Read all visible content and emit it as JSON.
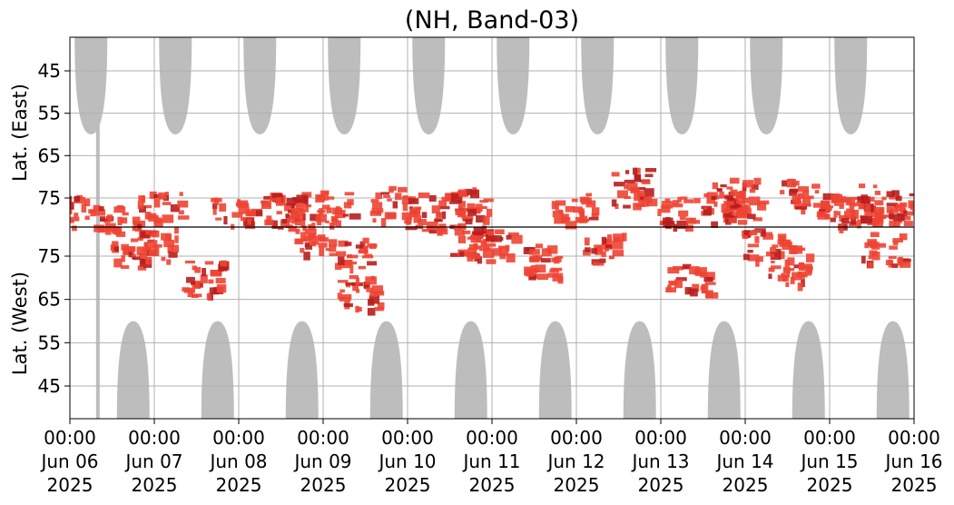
{
  "chart_data": {
    "type": "heatmap",
    "title": "(NH, Band-03)",
    "ylabel_top": "Lat. (East)",
    "ylabel_bottom": "Lat. (West)",
    "x_range_days": [
      0,
      10
    ],
    "x_ticks": [
      {
        "day": 0,
        "time": "00:00",
        "date": "Jun 06",
        "year": "2025"
      },
      {
        "day": 1,
        "time": "00:00",
        "date": "Jun 07",
        "year": "2025"
      },
      {
        "day": 2,
        "time": "00:00",
        "date": "Jun 08",
        "year": "2025"
      },
      {
        "day": 3,
        "time": "00:00",
        "date": "Jun 09",
        "year": "2025"
      },
      {
        "day": 4,
        "time": "00:00",
        "date": "Jun 10",
        "year": "2025"
      },
      {
        "day": 5,
        "time": "00:00",
        "date": "Jun 11",
        "year": "2025"
      },
      {
        "day": 6,
        "time": "00:00",
        "date": "Jun 12",
        "year": "2025"
      },
      {
        "day": 7,
        "time": "00:00",
        "date": "Jun 13",
        "year": "2025"
      },
      {
        "day": 8,
        "time": "00:00",
        "date": "Jun 14",
        "year": "2025"
      },
      {
        "day": 9,
        "time": "00:00",
        "date": "Jun 15",
        "year": "2025"
      },
      {
        "day": 10,
        "time": "00:00",
        "date": "Jun 16",
        "year": "2025"
      }
    ],
    "y_ticks_east": [
      "45",
      "55",
      "65",
      "75"
    ],
    "y_ticks_west": [
      "75",
      "65",
      "55",
      "45"
    ],
    "y_tick_values_east": [
      45,
      55,
      65,
      75
    ],
    "y_tick_values_west": [
      75,
      65,
      55,
      45
    ],
    "grid": true,
    "colors": {
      "night_mask": "#bdbdbd",
      "activity": "#ee4433",
      "activity_strong": "#b81d1d",
      "grid": "#b0b0b0",
      "center_line": "#000000"
    },
    "night_mask_peaks": {
      "east": [
        0.25,
        1.25,
        2.25,
        3.25,
        4.25,
        5.25,
        6.25,
        7.25,
        8.25,
        9.25
      ],
      "west": [
        0.75,
        1.75,
        2.75,
        3.75,
        4.75,
        5.75,
        6.75,
        7.75,
        8.75,
        9.75
      ],
      "min_lat": 60
    },
    "activity_patches": [
      {
        "day": 0.05,
        "lat": 78,
        "side": "east",
        "intensity": 0.6
      },
      {
        "day": 0.55,
        "lat": 80,
        "side": "east",
        "intensity": 0.5
      },
      {
        "day": 0.7,
        "lat": 76,
        "side": "west",
        "intensity": 0.5
      },
      {
        "day": 1.05,
        "lat": 77,
        "side": "east",
        "intensity": 0.5
      },
      {
        "day": 1.0,
        "lat": 78,
        "side": "west",
        "intensity": 0.6
      },
      {
        "day": 1.55,
        "lat": 70,
        "side": "west",
        "intensity": 0.7
      },
      {
        "day": 1.9,
        "lat": 78,
        "side": "east",
        "intensity": 0.4
      },
      {
        "day": 2.45,
        "lat": 78,
        "side": "east",
        "intensity": 0.6
      },
      {
        "day": 2.6,
        "lat": 77,
        "side": "east",
        "intensity": 0.5
      },
      {
        "day": 2.85,
        "lat": 79,
        "side": "west",
        "intensity": 0.5
      },
      {
        "day": 3.1,
        "lat": 77,
        "side": "east",
        "intensity": 0.6
      },
      {
        "day": 3.3,
        "lat": 76,
        "side": "west",
        "intensity": 0.5
      },
      {
        "day": 3.4,
        "lat": 67,
        "side": "west",
        "intensity": 0.7
      },
      {
        "day": 3.8,
        "lat": 76,
        "side": "east",
        "intensity": 0.6
      },
      {
        "day": 4.2,
        "lat": 78,
        "side": "east",
        "intensity": 0.8
      },
      {
        "day": 4.7,
        "lat": 79,
        "side": "west",
        "intensity": 0.5
      },
      {
        "day": 4.7,
        "lat": 77,
        "side": "east",
        "intensity": 0.9
      },
      {
        "day": 5.0,
        "lat": 78,
        "side": "west",
        "intensity": 0.6
      },
      {
        "day": 5.6,
        "lat": 74,
        "side": "west",
        "intensity": 0.7
      },
      {
        "day": 5.95,
        "lat": 77,
        "side": "east",
        "intensity": 0.5
      },
      {
        "day": 6.3,
        "lat": 77,
        "side": "west",
        "intensity": 0.5
      },
      {
        "day": 6.65,
        "lat": 72,
        "side": "east",
        "intensity": 0.9
      },
      {
        "day": 7.15,
        "lat": 78,
        "side": "east",
        "intensity": 0.5
      },
      {
        "day": 7.3,
        "lat": 70,
        "side": "west",
        "intensity": 0.6
      },
      {
        "day": 7.7,
        "lat": 76,
        "side": "east",
        "intensity": 0.9
      },
      {
        "day": 7.9,
        "lat": 75,
        "side": "east",
        "intensity": 0.9
      },
      {
        "day": 8.2,
        "lat": 78,
        "side": "west",
        "intensity": 0.5
      },
      {
        "day": 8.5,
        "lat": 73,
        "side": "west",
        "intensity": 0.9
      },
      {
        "day": 8.65,
        "lat": 74,
        "side": "east",
        "intensity": 0.6
      },
      {
        "day": 9.05,
        "lat": 77,
        "side": "east",
        "intensity": 0.4
      },
      {
        "day": 9.3,
        "lat": 78,
        "side": "east",
        "intensity": 0.5
      },
      {
        "day": 9.55,
        "lat": 76,
        "side": "east",
        "intensity": 0.8
      },
      {
        "day": 9.6,
        "lat": 77,
        "side": "west",
        "intensity": 0.6
      },
      {
        "day": 9.9,
        "lat": 77,
        "side": "east",
        "intensity": 0.5
      }
    ]
  }
}
